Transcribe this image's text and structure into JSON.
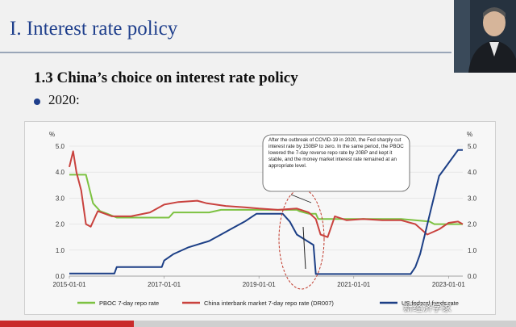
{
  "slide": {
    "title": "I. Interest rate policy",
    "section_title": "1.3 China’s choice on interest rate policy",
    "bullet": "2020:"
  },
  "watermark": "新经济学家",
  "progress": 0.26,
  "colors": {
    "pboc": "#7dc242",
    "dr007": "#c9423e",
    "fed": "#1c3f86",
    "title": "#1f3f8c"
  },
  "chart_data": {
    "type": "line",
    "title": "",
    "ylabel_left": "%",
    "ylabel_right": "%",
    "ylim": [
      0,
      5
    ],
    "yticks": [
      "0.0",
      "1.0",
      "2.0",
      "3.0",
      "4.0",
      "5.0"
    ],
    "xticks": [
      "2015-01-01",
      "2017-01-01",
      "2019-01-01",
      "2021-01-01",
      "2023-01-01"
    ],
    "x_range": [
      2015.0,
      2023.3
    ],
    "annotation": "After the outbreak of COVID-19 in 2020, the Fed sharply cut interest rate by 150BP to zero. In the same period, the PBOC lowered the 7-day reverse repo rate by 20BP and kept it stable, and the money market interest rate remained at an appropriate level.",
    "series": [
      {
        "name": "PBOC 7-day repo rate",
        "x": [
          2015.0,
          2015.35,
          2015.5,
          2015.65,
          2015.8,
          2016.0,
          2017.1,
          2017.2,
          2017.95,
          2018.2,
          2019.0,
          2019.8,
          2019.85,
          2020.05,
          2020.2,
          2020.25,
          2021.0,
          2022.0,
          2022.6,
          2022.7,
          2023.3
        ],
        "values": [
          3.9,
          3.9,
          2.8,
          2.5,
          2.4,
          2.25,
          2.25,
          2.45,
          2.45,
          2.55,
          2.55,
          2.55,
          2.5,
          2.4,
          2.4,
          2.2,
          2.2,
          2.2,
          2.1,
          2.0,
          2.0
        ]
      },
      {
        "name": "China interbank market 7-day repo rate (DR007)",
        "x": [
          2015.0,
          2015.08,
          2015.15,
          2015.25,
          2015.35,
          2015.45,
          2015.6,
          2015.9,
          2016.3,
          2016.7,
          2017.0,
          2017.3,
          2017.7,
          2017.9,
          2018.3,
          2018.7,
          2019.0,
          2019.4,
          2019.8,
          2020.05,
          2020.2,
          2020.3,
          2020.45,
          2020.6,
          2020.85,
          2021.2,
          2021.6,
          2022.0,
          2022.3,
          2022.55,
          2022.8,
          2023.0,
          2023.2,
          2023.3
        ],
        "values": [
          4.2,
          4.8,
          4.0,
          3.3,
          2.0,
          1.9,
          2.5,
          2.3,
          2.3,
          2.45,
          2.75,
          2.85,
          2.9,
          2.8,
          2.7,
          2.65,
          2.6,
          2.55,
          2.6,
          2.45,
          2.2,
          1.6,
          1.5,
          2.3,
          2.15,
          2.2,
          2.15,
          2.15,
          2.0,
          1.6,
          1.8,
          2.05,
          2.1,
          2.0
        ]
      },
      {
        "name": "US federal funds rate",
        "x": [
          2015.0,
          2015.95,
          2016.0,
          2016.95,
          2017.0,
          2017.2,
          2017.5,
          2017.95,
          2018.2,
          2018.45,
          2018.7,
          2018.95,
          2019.5,
          2019.65,
          2019.8,
          2020.15,
          2020.2,
          2022.2,
          2022.3,
          2022.4,
          2022.5,
          2022.6,
          2022.7,
          2022.8,
          2022.9,
          2023.0,
          2023.1,
          2023.2,
          2023.3
        ],
        "values": [
          0.1,
          0.1,
          0.35,
          0.35,
          0.6,
          0.85,
          1.1,
          1.35,
          1.6,
          1.85,
          2.1,
          2.4,
          2.4,
          2.1,
          1.6,
          1.2,
          0.08,
          0.08,
          0.35,
          0.85,
          1.6,
          2.35,
          3.1,
          3.85,
          4.1,
          4.35,
          4.6,
          4.85,
          4.85
        ]
      }
    ]
  }
}
